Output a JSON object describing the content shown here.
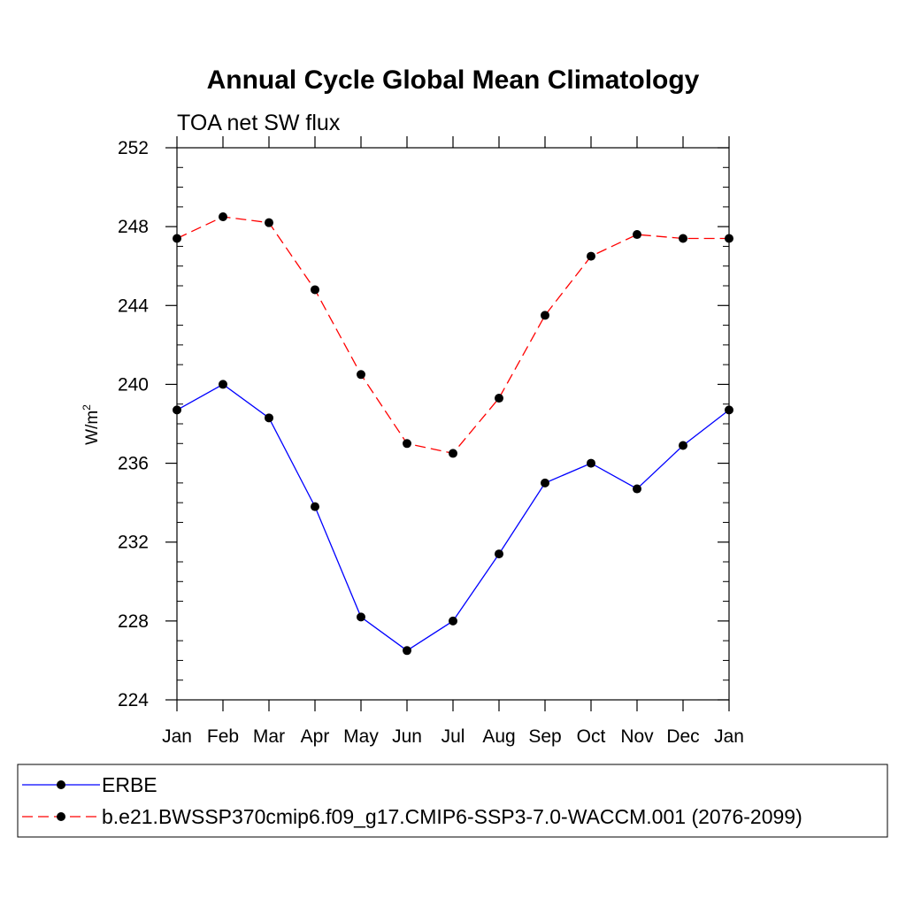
{
  "chart_data": {
    "type": "line",
    "title": "Annual Cycle Global Mean Climatology",
    "subtitle": "TOA net SW flux",
    "xlabel": "",
    "ylabel_base": "W/m",
    "ylabel_sup": "2",
    "categories": [
      "Jan",
      "Feb",
      "Mar",
      "Apr",
      "May",
      "Jun",
      "Jul",
      "Aug",
      "Sep",
      "Oct",
      "Nov",
      "Dec",
      "Jan"
    ],
    "ylim": [
      224,
      252
    ],
    "yticks": [
      "224",
      "228",
      "232",
      "236",
      "240",
      "244",
      "248",
      "252"
    ],
    "grid": false,
    "legend_position": "bottom",
    "series": [
      {
        "name": "ERBE",
        "color": "#0000ff",
        "line_style": "solid",
        "marker": "circle",
        "values": [
          238.7,
          240.0,
          238.3,
          233.8,
          228.2,
          226.5,
          228.0,
          231.4,
          235.0,
          236.0,
          234.7,
          236.9,
          238.7
        ]
      },
      {
        "name": "b.e21.BWSSP370cmip6.f09_g17.CMIP6-SSP3-7.0-WACCM.001 (2076-2099)",
        "color": "#ff0000",
        "line_style": "dashed",
        "marker": "circle",
        "values": [
          247.4,
          248.5,
          248.2,
          244.8,
          240.5,
          237.0,
          236.5,
          239.3,
          243.5,
          246.5,
          247.6,
          247.4,
          247.4
        ]
      }
    ]
  }
}
